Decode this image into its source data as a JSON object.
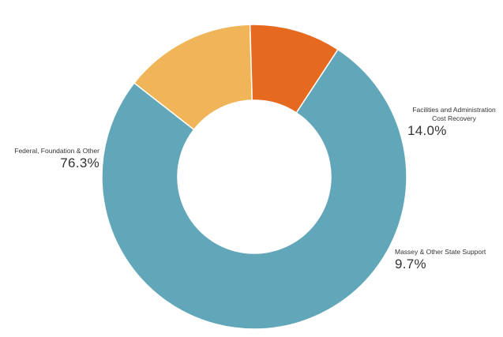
{
  "chart_data": {
    "type": "pie",
    "donut": true,
    "legend": "none",
    "slices": [
      {
        "label": "Facilities and Administration Cost Recovery",
        "value": 14.0,
        "display": "14.0%",
        "color": "#F0B558"
      },
      {
        "label": "Massey & Other State Support",
        "value": 9.7,
        "display": "9.7%",
        "color": "#E56A20"
      },
      {
        "label": "Federal, Foundation & Other",
        "value": 76.3,
        "display": "76.3%",
        "color": "#61A7B9"
      }
    ]
  }
}
